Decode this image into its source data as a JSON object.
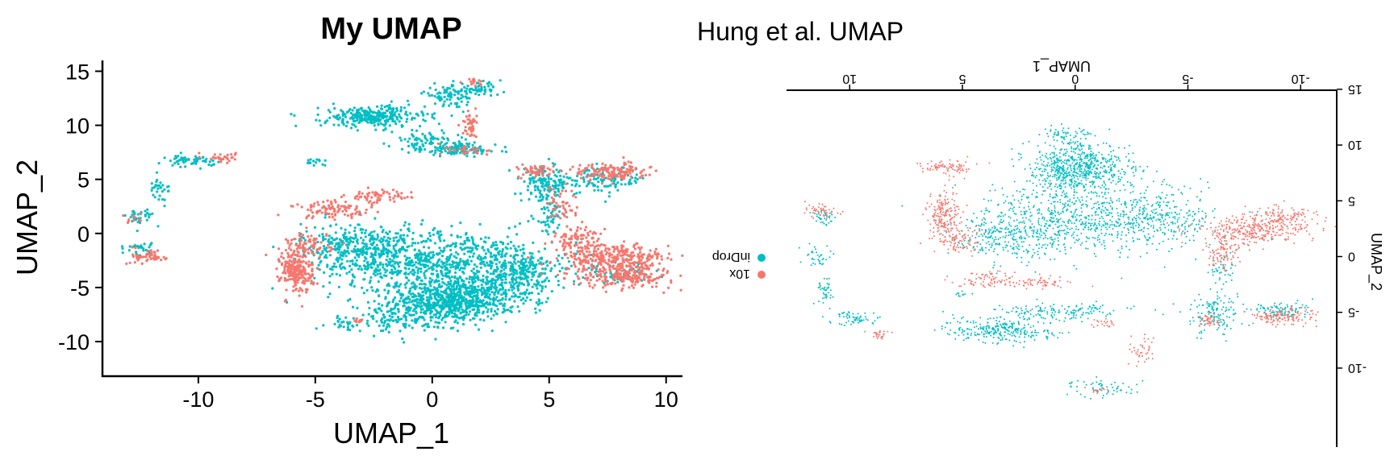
{
  "figure": {
    "background": "#ffffff"
  },
  "chart_data": [
    {
      "type": "scatter",
      "title": "My UMAP",
      "xlabel": "UMAP_1",
      "ylabel": "UMAP_2",
      "xlim": [
        -14.1,
        10.7
      ],
      "ylim": [
        -13.2,
        16
      ],
      "xticks": [
        "-10",
        "-5",
        "0",
        "5",
        "10"
      ],
      "yticks": [
        "15",
        "10",
        "5",
        "0",
        "-5",
        "-10"
      ],
      "grid": false,
      "legend": "none",
      "series": [
        {
          "color": "#00BFC4",
          "clusters": [
            {
              "cx": 0.8,
              "cy": -6.3,
              "sx": 1.3,
              "sy": 0.9,
              "n": 700
            },
            {
              "cx": 1.5,
              "cy": -3.0,
              "sx": 2.4,
              "sy": 1.6,
              "n": 650
            },
            {
              "cx": -1.5,
              "cy": -2.5,
              "sx": 1.8,
              "sy": 1.4,
              "n": 350
            },
            {
              "cx": -3.2,
              "cy": -1.0,
              "sx": 1.2,
              "sy": 1.0,
              "n": 250
            },
            {
              "cx": -1.4,
              "cy": -8.0,
              "sx": 1.4,
              "sy": 0.6,
              "n": 120
            },
            {
              "cx": 3.8,
              "cy": -4.0,
              "sx": 0.7,
              "sy": 1.2,
              "n": 170
            },
            {
              "cx": -2.5,
              "cy": 10.8,
              "sx": 1.1,
              "sy": 0.5,
              "n": 300
            },
            {
              "cx": -0.3,
              "cy": 8.5,
              "sx": 0.7,
              "sy": 0.5,
              "n": 80
            },
            {
              "cx": 1.2,
              "cy": 7.8,
              "sx": 0.8,
              "sy": 0.35,
              "n": 110
            },
            {
              "cx": 0.8,
              "cy": 12.8,
              "sx": 0.6,
              "sy": 0.5,
              "n": 80
            },
            {
              "cx": 2.0,
              "cy": 13.3,
              "sx": 0.5,
              "sy": 0.3,
              "n": 50
            },
            {
              "cx": 4.8,
              "cy": 4.5,
              "sx": 0.5,
              "sy": 0.8,
              "n": 140
            },
            {
              "cx": 7.2,
              "cy": 5.0,
              "sx": 1.0,
              "sy": 0.6,
              "n": 130
            },
            {
              "cx": 5.0,
              "cy": 1.5,
              "sx": 0.3,
              "sy": 0.9,
              "n": 50
            },
            {
              "cx": 8.0,
              "cy": -3.8,
              "sx": 0.7,
              "sy": 0.4,
              "n": 60
            },
            {
              "cx": -10.3,
              "cy": 6.7,
              "sx": 0.5,
              "sy": 0.25,
              "n": 60
            },
            {
              "cx": -11.7,
              "cy": 4.3,
              "sx": 0.25,
              "sy": 0.5,
              "n": 30
            },
            {
              "cx": -12.5,
              "cy": 1.5,
              "sx": 0.3,
              "sy": 0.4,
              "n": 35
            },
            {
              "cx": -12.5,
              "cy": -1.3,
              "sx": 0.3,
              "sy": 0.3,
              "n": 30
            },
            {
              "cx": -5.0,
              "cy": 6.6,
              "sx": 0.3,
              "sy": 0.15,
              "n": 15
            },
            {
              "cx": -4.0,
              "cy": -8.3,
              "sx": 0.4,
              "sy": 0.2,
              "n": 15
            }
          ]
        },
        {
          "color": "#F8766D",
          "clusters": [
            {
              "cx": -5.8,
              "cy": -3.5,
              "sx": 0.35,
              "sy": 1.0,
              "n": 220
            },
            {
              "cx": -5.3,
              "cy": -1.1,
              "sx": 0.5,
              "sy": 0.6,
              "n": 80
            },
            {
              "cx": -4.2,
              "cy": 2.2,
              "sx": 0.9,
              "sy": 0.4,
              "n": 100
            },
            {
              "cx": -2.3,
              "cy": 3.4,
              "sx": 0.7,
              "sy": 0.3,
              "n": 60
            },
            {
              "cx": 7.8,
              "cy": -2.4,
              "sx": 1.2,
              "sy": 0.7,
              "n": 320
            },
            {
              "cx": 8.3,
              "cy": -4.0,
              "sx": 1.0,
              "sy": 0.5,
              "n": 180
            },
            {
              "cx": 6.3,
              "cy": -0.5,
              "sx": 0.5,
              "sy": 0.6,
              "n": 90
            },
            {
              "cx": 7.6,
              "cy": 5.7,
              "sx": 0.8,
              "sy": 0.4,
              "n": 140
            },
            {
              "cx": 4.5,
              "cy": 5.8,
              "sx": 0.4,
              "sy": 0.3,
              "n": 50
            },
            {
              "cx": 5.5,
              "cy": 2.6,
              "sx": 0.3,
              "sy": 1.2,
              "n": 50
            },
            {
              "cx": 1.6,
              "cy": 10.0,
              "sx": 0.15,
              "sy": 0.6,
              "n": 45
            },
            {
              "cx": 1.8,
              "cy": 14.0,
              "sx": 0.2,
              "sy": 0.2,
              "n": 15
            },
            {
              "cx": 1.5,
              "cy": 7.7,
              "sx": 0.5,
              "sy": 0.3,
              "n": 30
            },
            {
              "cx": -12.1,
              "cy": -2.1,
              "sx": 0.4,
              "sy": 0.35,
              "n": 55
            },
            {
              "cx": -9.0,
              "cy": 7.0,
              "sx": 0.3,
              "sy": 0.2,
              "n": 30
            },
            {
              "cx": -12.8,
              "cy": 1.3,
              "sx": 0.2,
              "sy": 0.3,
              "n": 10
            },
            {
              "cx": -3.1,
              "cy": -8.0,
              "sx": 0.2,
              "sy": 0.2,
              "n": 12
            }
          ]
        }
      ]
    },
    {
      "type": "scatter",
      "title": "Hung et al. UMAP",
      "xlabel": "UMAP_1",
      "ylabel": "UMAP_2",
      "orientation": "rotated 180 degrees",
      "xlim": [
        -11.6,
        12.8
      ],
      "ylim": [
        -16,
        16
      ],
      "xticks": [
        "10",
        "5",
        "0",
        "-5",
        "-10"
      ],
      "yticks": [
        "-10",
        "-5",
        "0",
        "5",
        "10",
        "15"
      ],
      "grid": false,
      "legend": "left",
      "legend_items": [
        {
          "label": "inDrop",
          "color": "#00BFC4"
        },
        {
          "label": "10x",
          "color": "#F8766D"
        }
      ],
      "series": [
        {
          "name": "inDrop",
          "color": "#00BFC4",
          "clusters": [
            {
              "cx": -0.1,
              "cy": 8.0,
              "sx": 1.1,
              "sy": 1.1,
              "n": 650
            },
            {
              "cx": -1.0,
              "cy": 3.8,
              "sx": 2.3,
              "sy": 1.6,
              "n": 550
            },
            {
              "cx": 1.5,
              "cy": 2.5,
              "sx": 1.8,
              "sy": 1.5,
              "n": 300
            },
            {
              "cx": -4.0,
              "cy": 3.5,
              "sx": 1.0,
              "sy": 1.3,
              "n": 180
            },
            {
              "cx": 3.5,
              "cy": 1.8,
              "sx": 0.9,
              "sy": 1.0,
              "n": 120
            },
            {
              "cx": 0.5,
              "cy": 11.0,
              "sx": 0.6,
              "sy": 0.3,
              "n": 50
            },
            {
              "cx": 3.3,
              "cy": -6.6,
              "sx": 1.2,
              "sy": 0.6,
              "n": 280
            },
            {
              "cx": 0.5,
              "cy": -4.9,
              "sx": 1.3,
              "sy": 0.35,
              "n": 140
            },
            {
              "cx": -1.2,
              "cy": -11.8,
              "sx": 0.8,
              "sy": 0.4,
              "n": 60
            },
            {
              "cx": -6.2,
              "cy": -5.2,
              "sx": 0.6,
              "sy": 0.9,
              "n": 140
            },
            {
              "cx": -9.2,
              "cy": -4.8,
              "sx": 0.6,
              "sy": 0.4,
              "n": 90
            },
            {
              "cx": -6.5,
              "cy": -1.0,
              "sx": 0.3,
              "sy": 0.8,
              "n": 40
            },
            {
              "cx": 9.9,
              "cy": -5.5,
              "sx": 0.6,
              "sy": 0.3,
              "n": 60
            },
            {
              "cx": 11.1,
              "cy": -3.0,
              "sx": 0.2,
              "sy": 0.6,
              "n": 40
            },
            {
              "cx": 11.4,
              "cy": 0.0,
              "sx": 0.3,
              "sy": 0.5,
              "n": 35
            },
            {
              "cx": 11.2,
              "cy": 3.5,
              "sx": 0.3,
              "sy": 0.4,
              "n": 35
            },
            {
              "cx": 5.0,
              "cy": -3.4,
              "sx": 0.3,
              "sy": 0.15,
              "n": 12
            }
          ]
        },
        {
          "name": "10x",
          "color": "#F8766D",
          "clusters": [
            {
              "cx": 5.8,
              "cy": 3.5,
              "sx": 0.35,
              "sy": 1.2,
              "n": 200
            },
            {
              "cx": 5.1,
              "cy": 1.5,
              "sx": 0.5,
              "sy": 0.7,
              "n": 70
            },
            {
              "cx": 3.6,
              "cy": -2.0,
              "sx": 0.9,
              "sy": 0.4,
              "n": 90
            },
            {
              "cx": 1.4,
              "cy": -2.3,
              "sx": 0.6,
              "sy": 0.3,
              "n": 50
            },
            {
              "cx": 5.6,
              "cy": 8.0,
              "sx": 0.6,
              "sy": 0.35,
              "n": 80
            },
            {
              "cx": -7.7,
              "cy": 2.3,
              "sx": 1.1,
              "sy": 0.7,
              "n": 280
            },
            {
              "cx": -9.4,
              "cy": 3.3,
              "sx": 0.8,
              "sy": 0.6,
              "n": 140
            },
            {
              "cx": -6.6,
              "cy": 0.2,
              "sx": 0.4,
              "sy": 0.8,
              "n": 80
            },
            {
              "cx": -9.2,
              "cy": -5.4,
              "sx": 0.7,
              "sy": 0.4,
              "n": 130
            },
            {
              "cx": -6.0,
              "cy": -5.6,
              "sx": 0.3,
              "sy": 0.3,
              "n": 40
            },
            {
              "cx": -3.0,
              "cy": -8.5,
              "sx": 0.3,
              "sy": 0.6,
              "n": 40
            },
            {
              "cx": -1.0,
              "cy": -12.0,
              "sx": 0.2,
              "sy": 0.3,
              "n": 12
            },
            {
              "cx": 11.3,
              "cy": 4.0,
              "sx": 0.35,
              "sy": 0.35,
              "n": 45
            },
            {
              "cx": 8.7,
              "cy": -7.0,
              "sx": 0.3,
              "sy": 0.2,
              "n": 25
            },
            {
              "cx": -1.3,
              "cy": -6.0,
              "sx": 0.3,
              "sy": 0.2,
              "n": 20
            }
          ]
        }
      ]
    }
  ]
}
